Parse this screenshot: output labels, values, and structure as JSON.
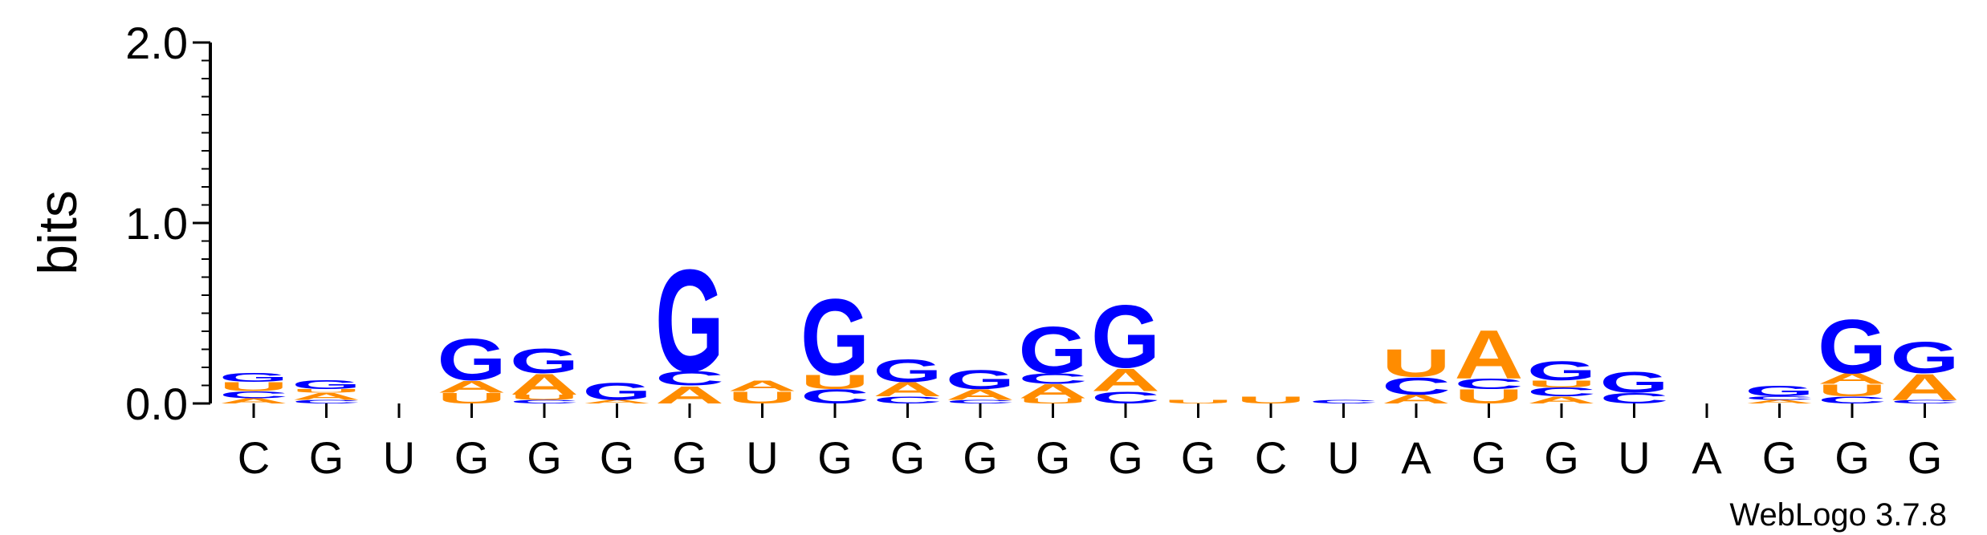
{
  "chart_data": {
    "type": "sequence-logo",
    "ylabel": "bits",
    "ylim": [
      0,
      2.0
    ],
    "yticks": [
      {
        "value": 0.0,
        "label": "0.0"
      },
      {
        "value": 1.0,
        "label": "1.0"
      },
      {
        "value": 2.0,
        "label": "2.0"
      }
    ],
    "categories": [
      "C",
      "G",
      "U",
      "G",
      "G",
      "G",
      "G",
      "U",
      "G",
      "G",
      "G",
      "G",
      "G",
      "G",
      "C",
      "U",
      "A",
      "G",
      "G",
      "U",
      "A",
      "G",
      "G",
      "G"
    ],
    "colors": {
      "G": "#0000ff",
      "A": "#ff8c00",
      "U": "#ff8c00",
      "C": "#0000ff"
    },
    "positions": [
      {
        "stack": [
          [
            "A",
            0.03
          ],
          [
            "C",
            0.04
          ],
          [
            "U",
            0.05
          ],
          [
            "G",
            0.05
          ]
        ]
      },
      {
        "stack": [
          [
            "C",
            0.02
          ],
          [
            "A",
            0.04
          ],
          [
            "U",
            0.02
          ],
          [
            "G",
            0.05
          ]
        ]
      },
      {
        "stack": []
      },
      {
        "stack": [
          [
            "U",
            0.06
          ],
          [
            "A",
            0.07
          ],
          [
            "G",
            0.24
          ]
        ]
      },
      {
        "stack": [
          [
            "C",
            0.02
          ],
          [
            "U",
            0.03
          ],
          [
            "A",
            0.12
          ],
          [
            "G",
            0.14
          ]
        ]
      },
      {
        "stack": [
          [
            "A",
            0.02
          ],
          [
            "G",
            0.1
          ]
        ]
      },
      {
        "stack": [
          [
            "A",
            0.1
          ],
          [
            "C",
            0.08
          ],
          [
            "G",
            0.59
          ]
        ]
      },
      {
        "stack": [
          [
            "U",
            0.07
          ],
          [
            "A",
            0.06
          ]
        ]
      },
      {
        "stack": [
          [
            "C",
            0.08
          ],
          [
            "U",
            0.08
          ],
          [
            "G",
            0.44
          ]
        ]
      },
      {
        "stack": [
          [
            "C",
            0.04
          ],
          [
            "A",
            0.08
          ],
          [
            "G",
            0.13
          ]
        ]
      },
      {
        "stack": [
          [
            "C",
            0.02
          ],
          [
            "A",
            0.06
          ],
          [
            "G",
            0.11
          ]
        ]
      },
      {
        "stack": [
          [
            "U",
            0.03
          ],
          [
            "A",
            0.08
          ],
          [
            "C",
            0.06
          ],
          [
            "G",
            0.27
          ]
        ]
      },
      {
        "stack": [
          [
            "C",
            0.07
          ],
          [
            "A",
            0.13
          ],
          [
            "G",
            0.36
          ]
        ]
      },
      {
        "stack": [
          [
            "U",
            0.02
          ]
        ]
      },
      {
        "stack": [
          [
            "U",
            0.04
          ]
        ]
      },
      {
        "stack": [
          [
            "C",
            0.02
          ]
        ]
      },
      {
        "stack": [
          [
            "A",
            0.05
          ],
          [
            "C",
            0.1
          ],
          [
            "U",
            0.16
          ]
        ]
      },
      {
        "stack": [
          [
            "U",
            0.08
          ],
          [
            "C",
            0.06
          ],
          [
            "A",
            0.28
          ]
        ]
      },
      {
        "stack": [
          [
            "A",
            0.04
          ],
          [
            "C",
            0.05
          ],
          [
            "U",
            0.04
          ],
          [
            "G",
            0.11
          ]
        ]
      },
      {
        "stack": [
          [
            "C",
            0.06
          ],
          [
            "G",
            0.12
          ]
        ]
      },
      {
        "stack": []
      },
      {
        "stack": [
          [
            "A",
            0.02
          ],
          [
            "C",
            0.02
          ],
          [
            "G",
            0.06
          ]
        ]
      },
      {
        "stack": [
          [
            "C",
            0.04
          ],
          [
            "U",
            0.07
          ],
          [
            "A",
            0.06
          ],
          [
            "G",
            0.31
          ]
        ]
      },
      {
        "stack": [
          [
            "C",
            0.02
          ],
          [
            "A",
            0.15
          ],
          [
            "G",
            0.18
          ]
        ]
      }
    ]
  },
  "credit": "WebLogo 3.7.8"
}
